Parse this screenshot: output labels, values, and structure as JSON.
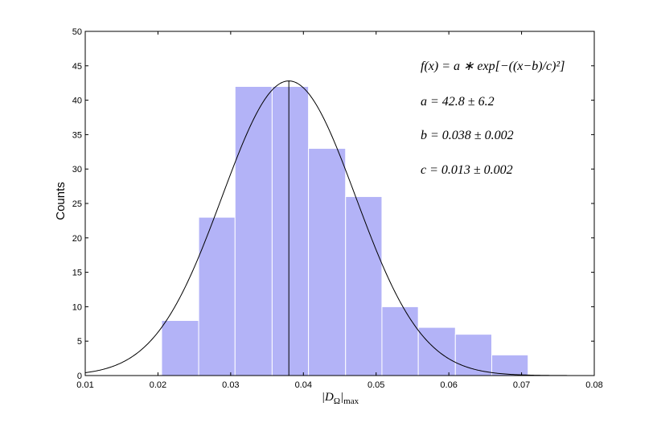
{
  "chart_data": {
    "type": "bar",
    "subtype": "histogram with gaussian fit",
    "xlabel": "|D_Ω|_max",
    "ylabel": "Counts",
    "xlim": [
      0.01,
      0.08
    ],
    "ylim": [
      0,
      50
    ],
    "xticks": [
      0.01,
      0.02,
      0.03,
      0.04,
      0.05,
      0.06,
      0.07,
      0.08
    ],
    "xtick_labels": [
      "0.01",
      "0.02",
      "0.03",
      "0.04",
      "0.05",
      "0.06",
      "0.07",
      "0.08"
    ],
    "yticks": [
      0,
      5,
      10,
      15,
      20,
      25,
      30,
      35,
      40,
      45,
      50
    ],
    "ytick_labels": [
      "0",
      "5",
      "10",
      "15",
      "20",
      "25",
      "30",
      "35",
      "40",
      "45",
      "50"
    ],
    "bins": [
      {
        "x0": 0.0205,
        "x1": 0.0256,
        "count": 8
      },
      {
        "x0": 0.0256,
        "x1": 0.0306,
        "count": 23
      },
      {
        "x0": 0.0306,
        "x1": 0.0357,
        "count": 42
      },
      {
        "x0": 0.0357,
        "x1": 0.0407,
        "count": 42
      },
      {
        "x0": 0.0407,
        "x1": 0.0458,
        "count": 33
      },
      {
        "x0": 0.0458,
        "x1": 0.0508,
        "count": 26
      },
      {
        "x0": 0.0508,
        "x1": 0.0558,
        "count": 10
      },
      {
        "x0": 0.0558,
        "x1": 0.0609,
        "count": 7
      },
      {
        "x0": 0.0609,
        "x1": 0.0659,
        "count": 6
      },
      {
        "x0": 0.0659,
        "x1": 0.0709,
        "count": 3
      }
    ],
    "fit": {
      "a": 42.8,
      "b": 0.038,
      "c": 0.013
    },
    "mean_line_x": 0.038,
    "annotations": [
      "f(x) = a ∗ exp[−((x−b)/c)²]",
      "a = 42.8 ± 6.2",
      "b = 0.038 ± 0.002",
      "c = 0.013 ± 0.002"
    ],
    "colors": {
      "bar_fill": "#b3b3f7",
      "bar_edge": "#ffffff",
      "curve": "#000000",
      "axis": "#000000"
    },
    "grid": false
  }
}
